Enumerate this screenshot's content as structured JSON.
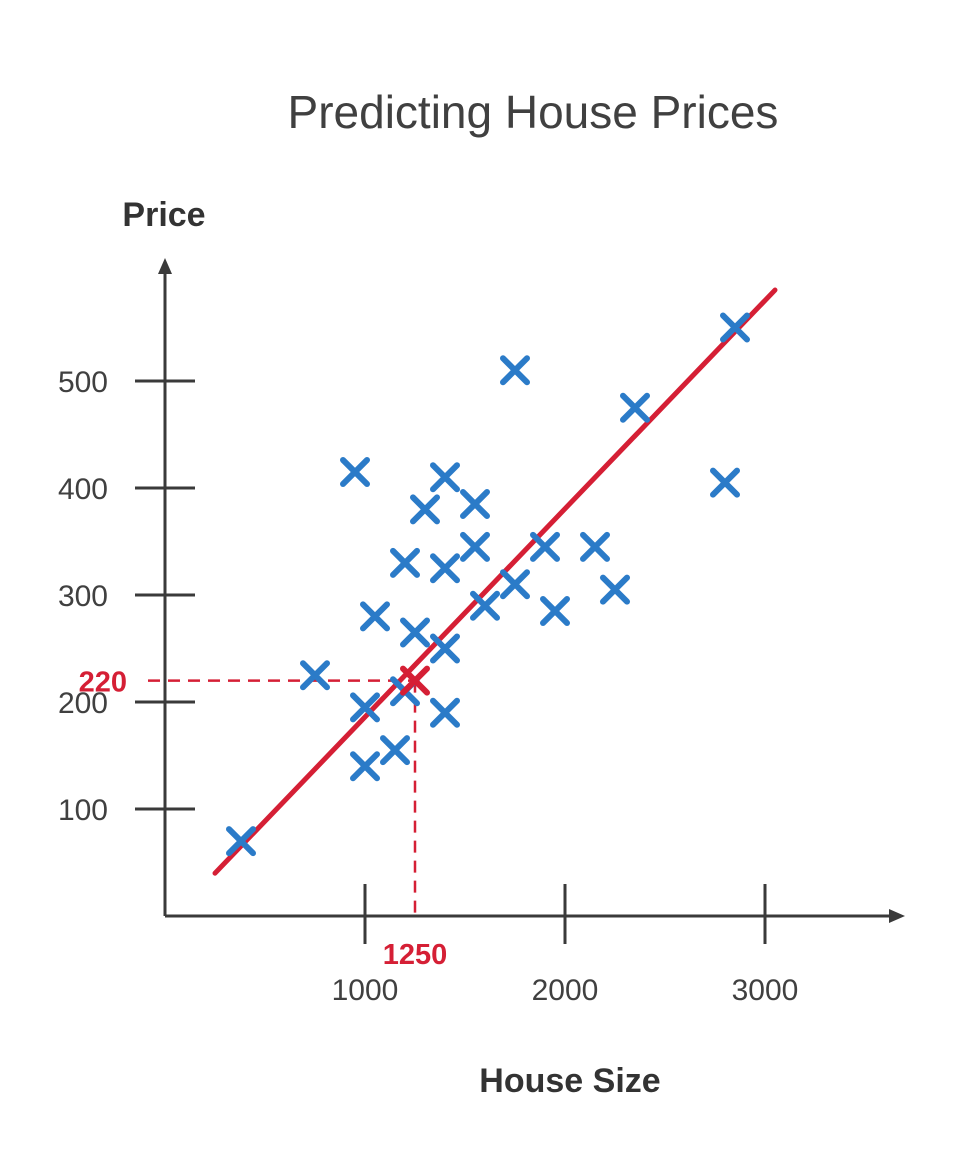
{
  "chart_data": {
    "type": "scatter",
    "title": "Predicting House Prices",
    "xlabel": "House Size",
    "ylabel": "Price",
    "xticks": [
      1000,
      2000,
      3000
    ],
    "yticks": [
      100,
      200,
      300,
      400,
      500
    ],
    "xlim": [
      0,
      3600
    ],
    "ylim": [
      0,
      600
    ],
    "grid": false,
    "colors": {
      "points": "#2b7bc8",
      "fit_line": "#d51f35",
      "axis": "#3a3a3a",
      "text": "#404040",
      "label": "#333333"
    },
    "series": [
      {
        "points": [
          [
            380,
            70
          ],
          [
            750,
            225
          ],
          [
            950,
            415
          ],
          [
            1000,
            140
          ],
          [
            1000,
            195
          ],
          [
            1050,
            280
          ],
          [
            1150,
            155
          ],
          [
            1200,
            210
          ],
          [
            1200,
            330
          ],
          [
            1250,
            265
          ],
          [
            1300,
            380
          ],
          [
            1400,
            325
          ],
          [
            1400,
            410
          ],
          [
            1400,
            250
          ],
          [
            1400,
            190
          ],
          [
            1550,
            385
          ],
          [
            1550,
            345
          ],
          [
            1600,
            290
          ],
          [
            1750,
            310
          ],
          [
            1750,
            510
          ],
          [
            1900,
            345
          ],
          [
            1950,
            285
          ],
          [
            2150,
            345
          ],
          [
            2250,
            305
          ],
          [
            2350,
            475
          ],
          [
            2800,
            405
          ],
          [
            2850,
            550
          ]
        ]
      }
    ],
    "fit_line": {
      "x": [
        250,
        3050
      ],
      "y": [
        40,
        585
      ]
    },
    "prediction": {
      "x": 1250,
      "y": 220,
      "x_label": "1250",
      "y_label": "220"
    }
  }
}
